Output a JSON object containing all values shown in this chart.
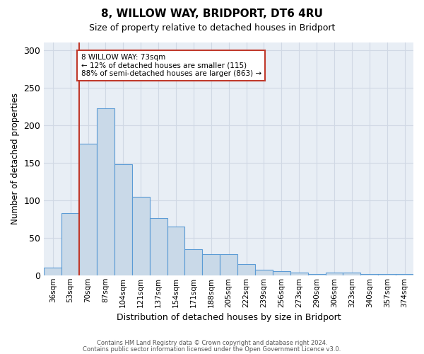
{
  "title1": "8, WILLOW WAY, BRIDPORT, DT6 4RU",
  "title2": "Size of property relative to detached houses in Bridport",
  "xlabel": "Distribution of detached houses by size in Bridport",
  "ylabel": "Number of detached properties",
  "categories": [
    "36sqm",
    "53sqm",
    "70sqm",
    "87sqm",
    "104sqm",
    "121sqm",
    "137sqm",
    "154sqm",
    "171sqm",
    "188sqm",
    "205sqm",
    "222sqm",
    "239sqm",
    "256sqm",
    "273sqm",
    "290sqm",
    "306sqm",
    "323sqm",
    "340sqm",
    "357sqm",
    "374sqm"
  ],
  "values": [
    10,
    83,
    175,
    222,
    148,
    104,
    76,
    65,
    35,
    28,
    28,
    15,
    7,
    5,
    4,
    2,
    4,
    4,
    2,
    2,
    2
  ],
  "bar_color": "#c9d9e8",
  "bar_edge_color": "#5b9bd5",
  "vline_x": 1.5,
  "vline_color": "#c0392b",
  "annotation_text": "8 WILLOW WAY: 73sqm\n← 12% of detached houses are smaller (115)\n88% of semi-detached houses are larger (863) →",
  "annotation_box_color": "#c0392b",
  "ylim": [
    0,
    310
  ],
  "yticks": [
    0,
    50,
    100,
    150,
    200,
    250,
    300
  ],
  "grid_color": "#d0d8e4",
  "background_color": "#e8eef5",
  "footer1": "Contains HM Land Registry data © Crown copyright and database right 2024.",
  "footer2": "Contains public sector information licensed under the Open Government Licence v3.0."
}
